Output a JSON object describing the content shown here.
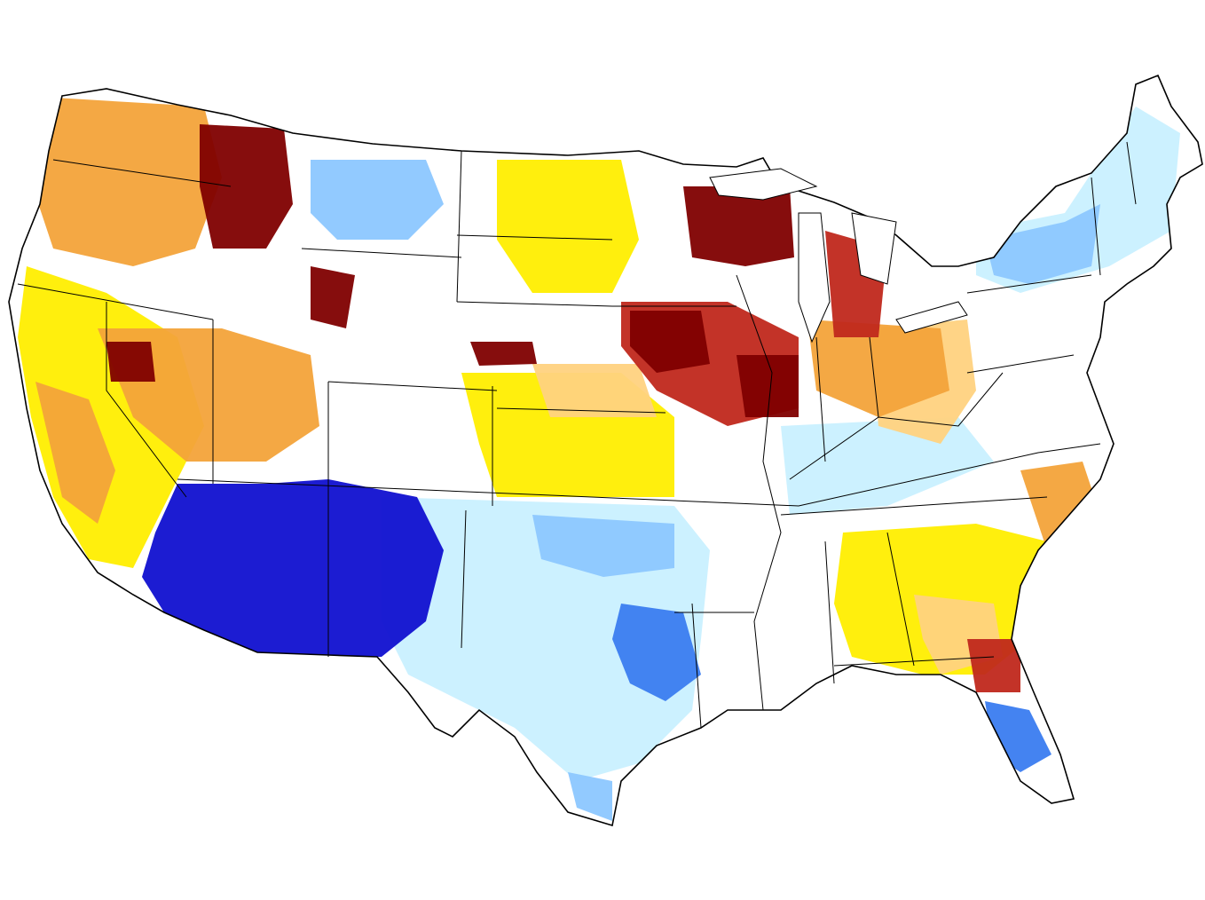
{
  "map": {
    "type": "choropleth-grid",
    "region": "contiguous-us",
    "colors": {
      "extreme_dry": "#800000",
      "severe_dry": "#c0281c",
      "moderate_dry": "#f3a33a",
      "light_dry": "#ffd27f",
      "abnormally_dry": "#ffee00",
      "near_normal": "#ffffff",
      "light_wet": "#c9f0ff",
      "moderate_wet": "#8cc7ff",
      "wet": "#3a7cf0",
      "very_wet": "#1010d0",
      "state_border": "#000000"
    },
    "regions": [
      {
        "name": "pacific-northwest",
        "category": "moderate_dry"
      },
      {
        "name": "northern-rockies",
        "category": "extreme_dry"
      },
      {
        "name": "upper-midwest",
        "category": "extreme_dry"
      },
      {
        "name": "corn-belt",
        "category": "severe_dry"
      },
      {
        "name": "ohio-valley",
        "category": "light_dry"
      },
      {
        "name": "great-basin",
        "category": "moderate_dry"
      },
      {
        "name": "desert-southwest",
        "category": "very_wet"
      },
      {
        "name": "southern-plains",
        "category": "light_wet"
      },
      {
        "name": "central-texas",
        "category": "wet"
      },
      {
        "name": "southeast",
        "category": "abnormally_dry"
      },
      {
        "name": "south-florida",
        "category": "wet"
      },
      {
        "name": "northern-plains-montana",
        "category": "moderate_wet"
      },
      {
        "name": "northeast",
        "category": "light_wet"
      }
    ]
  }
}
